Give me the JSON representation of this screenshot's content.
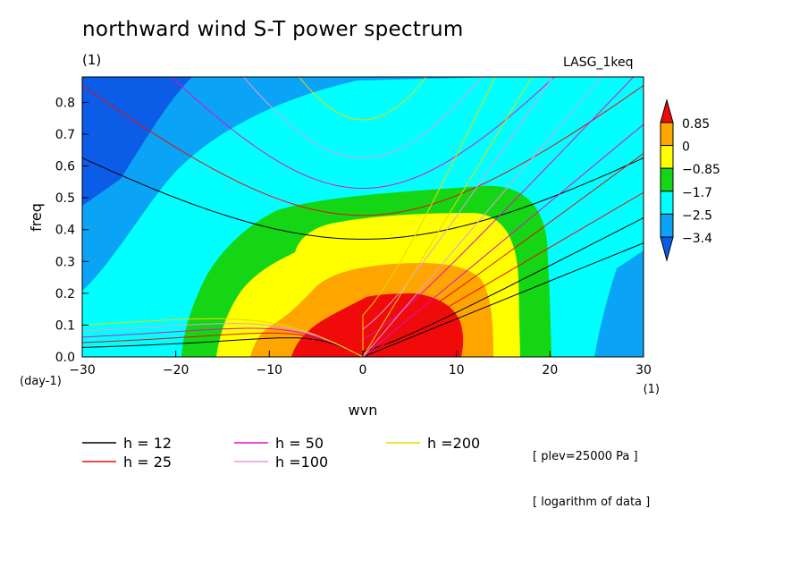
{
  "title": "northward wind S-T power spectrum",
  "unit_top": "(1)",
  "model": "LASG_1keq",
  "notes": [
    "[ plev=25000 Pa ]",
    "[ logarithm of data ]"
  ],
  "chart_data": {
    "type": "heatmap",
    "title": "northward wind S-T power spectrum",
    "xlabel": "wvn",
    "ylabel": "freq",
    "x_unit": "(1)",
    "y_unit": "(day-1)",
    "xlim": [
      -30,
      30
    ],
    "ylim": [
      0,
      0.88
    ],
    "xticks": [
      -30,
      -20,
      -10,
      0,
      10,
      20,
      30
    ],
    "yticks": [
      0.0,
      0.1,
      0.2,
      0.3,
      0.4,
      0.5,
      0.6,
      0.7,
      0.8
    ],
    "colorbar": {
      "labels": [
        "0.85",
        "0",
        "−0.85",
        "−1.7",
        "−2.5",
        "−3.4"
      ],
      "colors": [
        "#0b5ce6",
        "#0aa3f5",
        "#00ffff",
        "#14d614",
        "#ffff00",
        "#ffa500",
        "#f00a0a"
      ]
    },
    "series": [
      {
        "name": "h = 12",
        "color": "#000000"
      },
      {
        "name": "h = 25",
        "color": "#e41010"
      },
      {
        "name": "h = 50",
        "color": "#e010c8"
      },
      {
        "name": "h =100",
        "color": "#e49be0"
      },
      {
        "name": "h =200",
        "color": "#e8d800"
      }
    ]
  }
}
